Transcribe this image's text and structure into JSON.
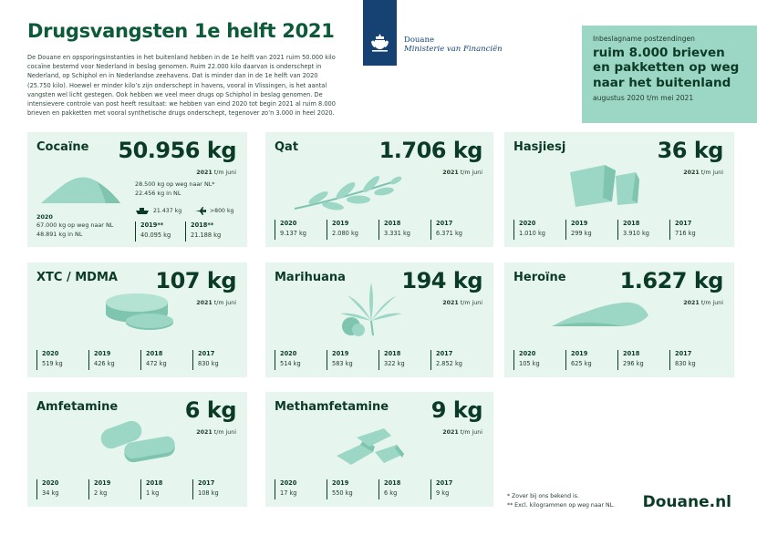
{
  "header": {
    "title": "Drugsvangsten 1e helft 2021",
    "intro": "De Douane en opsporingsinstanties in het buitenland hebben in de 1e helft van 2021 ruim 50.000 kilo cocaïne bestemd voor Nederland in beslag genomen. Ruim 22.000 kilo daarvan is onderschept in Nederland, op Schiphol en in Nederlandse zeehavens. Dat is minder dan in de 1e helft van 2020 (25.750 kilo). Hoewel er minder kilo’s zijn onderschept in havens, vooral in Vlissingen, is het aantal vangsten wel licht gestegen. Ook hebben we veel meer drugs op Schiphol in beslag genomen. De intensievere controle van post heeft resultaat: we hebben van eind 2020 tot begin 2021 al ruim 8.000 brieven en pakketten met vooral synthetische drugs onderschept, tegenover zo’n 3.000 in heel 2020."
  },
  "logo": {
    "line1": "Douane",
    "line2": "Ministerie van Financiën",
    "color": "#154273"
  },
  "callout": {
    "small": "Inbeslagname postzendingen",
    "big": "ruim 8.000 brieven en pakketten op weg naar het buitenland",
    "foot": "augustus 2020 t/m mei 2021"
  },
  "colors": {
    "card_bg": "#e7f5ef",
    "illustration": "#9cd6c4",
    "title": "#0d5a3a"
  },
  "cards": {
    "cocaine": {
      "name": "Cocaïne",
      "amount": "50.956 kg",
      "period_year": "2021",
      "period_rest": " t/m juni",
      "detail_line1": "28.500 kg op weg naar NL*",
      "detail_line2": "22.456 kg in NL",
      "ship_value": "21.437 kg",
      "plane_value": ">800 kg",
      "y2020_label": "2020",
      "y2020_line1": "67.000 kg op weg naar NL",
      "y2020_line2": "48.891 kg in NL",
      "years": [
        {
          "y": "2019**",
          "v": "40.095 kg"
        },
        {
          "y": "2018**",
          "v": "21.188 kg"
        }
      ],
      "icon": "cocaine-heap-icon"
    },
    "qat": {
      "name": "Qat",
      "amount": "1.706 kg",
      "period_year": "2021",
      "period_rest": " t/m juni",
      "years": [
        {
          "y": "2020",
          "v": "9.137 kg"
        },
        {
          "y": "2019",
          "v": "2.080 kg"
        },
        {
          "y": "2018",
          "v": "3.331 kg"
        },
        {
          "y": "2017",
          "v": "6.371 kg"
        }
      ],
      "icon": "leaf-branch-icon"
    },
    "hasjiesj": {
      "name": "Hasjiesj",
      "amount": "36 kg",
      "period_year": "2021",
      "period_rest": " t/m juni",
      "years": [
        {
          "y": "2020",
          "v": "1.010 kg"
        },
        {
          "y": "2019",
          "v": "299 kg"
        },
        {
          "y": "2018",
          "v": "3.910 kg"
        },
        {
          "y": "2017",
          "v": "716 kg"
        }
      ],
      "icon": "hash-block-icon"
    },
    "xtc": {
      "name": "XTC / MDMA",
      "amount": "107 kg",
      "period_year": "2021",
      "period_rest": " t/m juni",
      "years": [
        {
          "y": "2020",
          "v": "519 kg"
        },
        {
          "y": "2019",
          "v": "426 kg"
        },
        {
          "y": "2018",
          "v": "472 kg"
        },
        {
          "y": "2017",
          "v": "830 kg"
        }
      ],
      "icon": "pills-icon"
    },
    "marihuana": {
      "name": "Marihuana",
      "amount": "194 kg",
      "period_year": "2021",
      "period_rest": " t/m juni",
      "years": [
        {
          "y": "2020",
          "v": "514 kg"
        },
        {
          "y": "2019",
          "v": "583 kg"
        },
        {
          "y": "2018",
          "v": "322 kg"
        },
        {
          "y": "2017",
          "v": "2.852 kg"
        }
      ],
      "icon": "cannabis-leaf-icon"
    },
    "heroine": {
      "name": "Heroïne",
      "amount": "1.627 kg",
      "period_year": "2021",
      "period_rest": " t/m juni",
      "years": [
        {
          "y": "2020",
          "v": "105 kg"
        },
        {
          "y": "2019",
          "v": "625 kg"
        },
        {
          "y": "2018",
          "v": "296 kg"
        },
        {
          "y": "2017",
          "v": "830 kg"
        }
      ],
      "icon": "powder-pile-icon"
    },
    "amfetamine": {
      "name": "Amfetamine",
      "amount": "6 kg",
      "period_year": "2021",
      "period_rest": " t/m juni",
      "years": [
        {
          "y": "2020",
          "v": "34 kg"
        },
        {
          "y": "2019",
          "v": "2 kg"
        },
        {
          "y": "2018",
          "v": "1 kg"
        },
        {
          "y": "2017",
          "v": "108 kg"
        }
      ],
      "icon": "tablets-icon"
    },
    "methamfetamine": {
      "name": "Methamfetamine",
      "amount": "9 kg",
      "period_year": "2021",
      "period_rest": " t/m juni",
      "years": [
        {
          "y": "2020",
          "v": "17 kg"
        },
        {
          "y": "2019",
          "v": "550 kg"
        },
        {
          "y": "2018",
          "v": "6 kg"
        },
        {
          "y": "2017",
          "v": "9 kg"
        }
      ],
      "icon": "crystals-icon"
    }
  },
  "footer": {
    "note1": "* Zover bij ons bekend is.",
    "note2": "** Excl. kilogrammen op weg naar NL.",
    "brand": "Douane.nl"
  }
}
